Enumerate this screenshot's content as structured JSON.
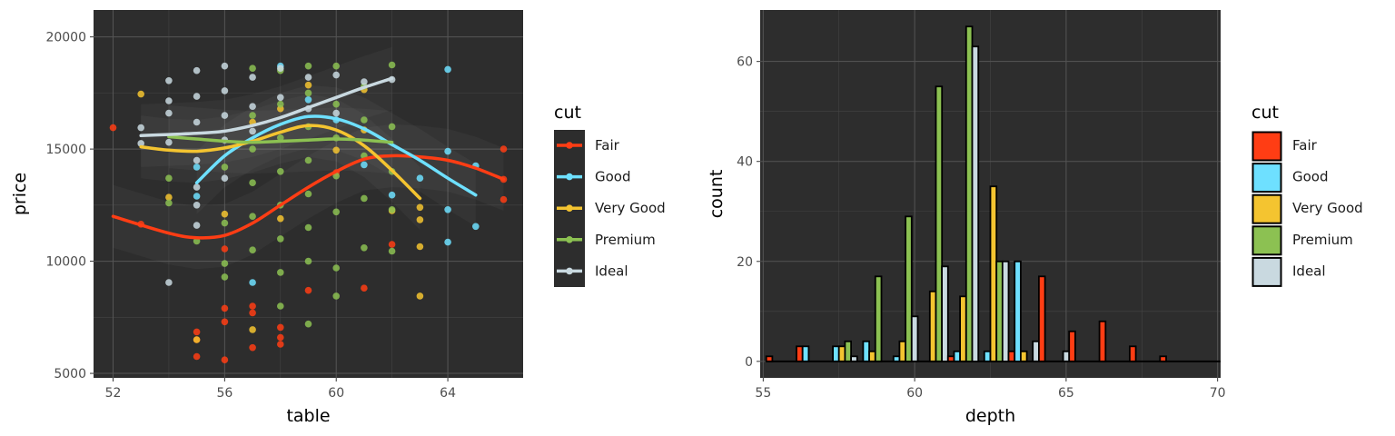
{
  "chart_data": [
    {
      "type": "scatter",
      "xlabel": "table",
      "ylabel": "price",
      "xlim": [
        51.3,
        66.7
      ],
      "ylim": [
        4800,
        21200
      ],
      "xticks": [
        52,
        56,
        60,
        64
      ],
      "yticks": [
        5000,
        10000,
        15000,
        20000
      ],
      "xtick_labels": [
        "52",
        "56",
        "60",
        "64"
      ],
      "ytick_labels": [
        "5000",
        "10000",
        "15000",
        "20000"
      ],
      "legend_title": "cut",
      "legend_placement": "right",
      "grid": true,
      "theme": "dark",
      "series": [
        {
          "name": "Fair",
          "color": "#ff3d14",
          "points": [
            [
              52,
              15950
            ],
            [
              53,
              11650
            ],
            [
              55,
              6850
            ],
            [
              55,
              6500
            ],
            [
              55,
              5750
            ],
            [
              56,
              5600
            ],
            [
              56,
              7300
            ],
            [
              56,
              7900
            ],
            [
              56,
              10550
            ],
            [
              57,
              6150
            ],
            [
              57,
              7700
            ],
            [
              57,
              8000
            ],
            [
              58,
              6300
            ],
            [
              58,
              6600
            ],
            [
              58,
              7050
            ],
            [
              59,
              8700
            ],
            [
              60,
              13950
            ],
            [
              61,
              8800
            ],
            [
              62,
              10750
            ],
            [
              66,
              15000
            ],
            [
              66,
              13650
            ],
            [
              66,
              12750
            ]
          ],
          "smooth": [
            [
              52,
              12000
            ],
            [
              54,
              11250
            ],
            [
              55,
              11050
            ],
            [
              56,
              11150
            ],
            [
              57,
              11700
            ],
            [
              58,
              12500
            ],
            [
              59,
              13300
            ],
            [
              60,
              14000
            ],
            [
              61,
              14550
            ],
            [
              62,
              14700
            ],
            [
              63,
              14650
            ],
            [
              64,
              14500
            ],
            [
              65,
              14150
            ],
            [
              66,
              13650
            ]
          ]
        },
        {
          "name": "Good",
          "color": "#6ee0ff",
          "points": [
            [
              55,
              12900
            ],
            [
              55,
              14200
            ],
            [
              57,
              9050
            ],
            [
              58,
              18700
            ],
            [
              59,
              17200
            ],
            [
              60,
              16300
            ],
            [
              61,
              14300
            ],
            [
              62,
              12950
            ],
            [
              63,
              13700
            ],
            [
              64,
              12300
            ],
            [
              64,
              10850
            ],
            [
              64,
              18550
            ],
            [
              64,
              14900
            ],
            [
              65,
              11550
            ],
            [
              65,
              14250
            ]
          ],
          "smooth": [
            [
              55,
              13500
            ],
            [
              56,
              14700
            ],
            [
              57,
              15500
            ],
            [
              58,
              16100
            ],
            [
              59,
              16450
            ],
            [
              60,
              16350
            ],
            [
              61,
              15900
            ],
            [
              62,
              15200
            ],
            [
              63,
              14500
            ],
            [
              64,
              13700
            ],
            [
              65,
              12950
            ]
          ]
        },
        {
          "name": "Very Good",
          "color": "#f4c430",
          "points": [
            [
              53,
              17450
            ],
            [
              54,
              12850
            ],
            [
              55,
              6500
            ],
            [
              56,
              12100
            ],
            [
              57,
              16200
            ],
            [
              57,
              6950
            ],
            [
              58,
              16800
            ],
            [
              58,
              11900
            ],
            [
              59,
              17850
            ],
            [
              60,
              14950
            ],
            [
              61,
              17650
            ],
            [
              61,
              15850
            ],
            [
              62,
              12250
            ],
            [
              63,
              12400
            ],
            [
              63,
              11850
            ],
            [
              63,
              10650
            ],
            [
              63,
              8450
            ]
          ],
          "smooth": [
            [
              53,
              15100
            ],
            [
              54,
              14950
            ],
            [
              55,
              14900
            ],
            [
              56,
              15050
            ],
            [
              57,
              15350
            ],
            [
              58,
              15750
            ],
            [
              59,
              16050
            ],
            [
              60,
              15850
            ],
            [
              61,
              15150
            ],
            [
              62,
              14050
            ],
            [
              63,
              12800
            ]
          ]
        },
        {
          "name": "Premium",
          "color": "#8cc152",
          "points": [
            [
              54,
              13700
            ],
            [
              54,
              12600
            ],
            [
              55,
              10900
            ],
            [
              56,
              9900
            ],
            [
              56,
              9300
            ],
            [
              56,
              11700
            ],
            [
              56,
              14200
            ],
            [
              57,
              18600
            ],
            [
              57,
              16500
            ],
            [
              57,
              15000
            ],
            [
              57,
              13500
            ],
            [
              57,
              12000
            ],
            [
              57,
              10500
            ],
            [
              58,
              18500
            ],
            [
              58,
              17000
            ],
            [
              58,
              15500
            ],
            [
              58,
              14000
            ],
            [
              58,
              12500
            ],
            [
              58,
              11000
            ],
            [
              58,
              9500
            ],
            [
              58,
              8000
            ],
            [
              59,
              18700
            ],
            [
              59,
              17500
            ],
            [
              59,
              16000
            ],
            [
              59,
              14500
            ],
            [
              59,
              13000
            ],
            [
              59,
              11500
            ],
            [
              59,
              10000
            ],
            [
              59,
              7200
            ],
            [
              60,
              18700
            ],
            [
              60,
              17000
            ],
            [
              60,
              15500
            ],
            [
              60,
              13800
            ],
            [
              60,
              12200
            ],
            [
              60,
              9700
            ],
            [
              60,
              8450
            ],
            [
              61,
              17800
            ],
            [
              61,
              16300
            ],
            [
              61,
              14700
            ],
            [
              61,
              12800
            ],
            [
              61,
              10600
            ],
            [
              62,
              18750
            ],
            [
              62,
              16000
            ],
            [
              62,
              14000
            ],
            [
              62,
              12300
            ],
            [
              62,
              10450
            ]
          ],
          "smooth": [
            [
              54,
              15550
            ],
            [
              55,
              15450
            ],
            [
              56,
              15350
            ],
            [
              57,
              15300
            ],
            [
              58,
              15350
            ],
            [
              59,
              15400
            ],
            [
              60,
              15450
            ],
            [
              61,
              15400
            ],
            [
              62,
              15300
            ]
          ]
        },
        {
          "name": "Ideal",
          "color": "#c9d9e0",
          "points": [
            [
              53,
              15950
            ],
            [
              53,
              15250
            ],
            [
              54,
              18050
            ],
            [
              54,
              17150
            ],
            [
              54,
              16600
            ],
            [
              54,
              15300
            ],
            [
              54,
              9050
            ],
            [
              55,
              18500
            ],
            [
              55,
              17350
            ],
            [
              55,
              16200
            ],
            [
              55,
              14500
            ],
            [
              55,
              13300
            ],
            [
              55,
              12500
            ],
            [
              55,
              11600
            ],
            [
              56,
              18700
            ],
            [
              56,
              17600
            ],
            [
              56,
              16500
            ],
            [
              56,
              15400
            ],
            [
              56,
              13700
            ],
            [
              57,
              18200
            ],
            [
              57,
              16900
            ],
            [
              57,
              15800
            ],
            [
              58,
              18600
            ],
            [
              58,
              17300
            ],
            [
              59,
              18200
            ],
            [
              59,
              16800
            ],
            [
              60,
              18300
            ],
            [
              60,
              16600
            ],
            [
              61,
              18000
            ],
            [
              62,
              18100
            ]
          ],
          "smooth": [
            [
              53,
              15600
            ],
            [
              54,
              15650
            ],
            [
              55,
              15700
            ],
            [
              56,
              15800
            ],
            [
              57,
              16050
            ],
            [
              58,
              16400
            ],
            [
              59,
              16850
            ],
            [
              60,
              17300
            ],
            [
              61,
              17750
            ],
            [
              62,
              18150
            ]
          ]
        }
      ]
    },
    {
      "type": "bar",
      "xlabel": "depth",
      "ylabel": "count",
      "xlim": [
        54.9,
        70.1
      ],
      "ylim": [
        -3.3,
        70.3
      ],
      "xticks": [
        55,
        60,
        65,
        70
      ],
      "yticks": [
        0,
        20,
        40,
        60
      ],
      "xtick_labels": [
        "55",
        "60",
        "65",
        "70"
      ],
      "ytick_labels": [
        "0",
        "20",
        "40",
        "60"
      ],
      "legend_title": "cut",
      "legend_placement": "right",
      "grid": true,
      "theme": "dark",
      "bin_width": 1,
      "bin_centers": [
        55.6,
        56.6,
        57.6,
        58.6,
        59.6,
        60.6,
        61.6,
        62.6,
        63.6,
        64.6,
        65.6,
        66.6,
        67.6,
        68.6,
        69.6
      ],
      "series": [
        {
          "name": "Fair",
          "color": "#ff3d14",
          "values": [
            1,
            3,
            0,
            0,
            0,
            0,
            1,
            0,
            2,
            17,
            6,
            8,
            3,
            1,
            0
          ]
        },
        {
          "name": "Good",
          "color": "#6ee0ff",
          "values": [
            0,
            3,
            3,
            4,
            1,
            0,
            2,
            2,
            20,
            0,
            0,
            0,
            0,
            0,
            0
          ]
        },
        {
          "name": "Very Good",
          "color": "#f4c430",
          "values": [
            0,
            0,
            3,
            2,
            4,
            14,
            13,
            35,
            2,
            0,
            0,
            0,
            0,
            0,
            0
          ]
        },
        {
          "name": "Premium",
          "color": "#8cc152",
          "values": [
            0,
            0,
            4,
            17,
            29,
            55,
            67,
            20,
            0,
            0,
            0,
            0,
            0,
            0,
            0
          ]
        },
        {
          "name": "Ideal",
          "color": "#c9d9e0",
          "values": [
            0,
            0,
            1,
            0,
            9,
            19,
            63,
            20,
            4,
            2,
            0,
            0,
            0,
            0,
            0
          ]
        }
      ]
    }
  ]
}
